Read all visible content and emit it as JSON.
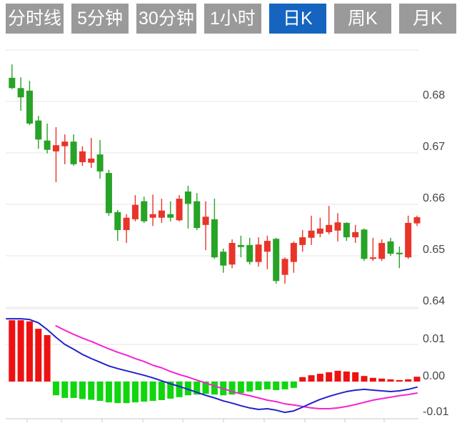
{
  "tabbar": {
    "selected": "日K",
    "tabs": [
      {
        "label": "分时线",
        "active": false
      },
      {
        "label": "5分钟",
        "active": false
      },
      {
        "label": "30分钟",
        "active": false
      },
      {
        "label": "1小时",
        "active": false
      },
      {
        "label": "日K",
        "active": true
      },
      {
        "label": "周K",
        "active": false
      },
      {
        "label": "月K",
        "active": false
      }
    ]
  },
  "colors": {
    "tab_bg": "#9a9a9a",
    "tab_active_bg": "#1565c0",
    "tab_text": "#ffffff",
    "candle_up": "#e93429",
    "candle_down": "#27a327",
    "hist_up": "#ee1111",
    "hist_down": "#0fd60f",
    "dif_line": "#2222cc",
    "dea_line": "#f522d2",
    "grid": "#e5e5e5",
    "axis_line": "#c8c8c8",
    "label_text": "#45454d",
    "background": "#ffffff"
  },
  "chart_data": {
    "type": "candlestick",
    "title": "",
    "legend_position": "none",
    "grid": true,
    "price_axis": {
      "side": "right",
      "tick_labels": [
        "0.68",
        "0.67",
        "0.66",
        "0.65",
        "0.64"
      ],
      "tick_values": [
        0.68,
        0.67,
        0.66,
        0.65,
        0.64
      ],
      "grid_values": [
        0.69,
        0.68,
        0.67,
        0.66,
        0.65,
        0.64
      ],
      "range": [
        0.64,
        0.69
      ]
    },
    "candles": [
      {
        "o": 0.6846,
        "h": 0.6872,
        "l": 0.6824,
        "c": 0.6826
      },
      {
        "o": 0.6826,
        "h": 0.6847,
        "l": 0.6782,
        "c": 0.6808
      },
      {
        "o": 0.6821,
        "h": 0.684,
        "l": 0.6754,
        "c": 0.6757
      },
      {
        "o": 0.6763,
        "h": 0.6772,
        "l": 0.6708,
        "c": 0.6726
      },
      {
        "o": 0.6724,
        "h": 0.6757,
        "l": 0.6699,
        "c": 0.6706
      },
      {
        "o": 0.6703,
        "h": 0.675,
        "l": 0.6643,
        "c": 0.6715
      },
      {
        "o": 0.6713,
        "h": 0.6736,
        "l": 0.6678,
        "c": 0.6722
      },
      {
        "o": 0.6722,
        "h": 0.6736,
        "l": 0.6675,
        "c": 0.6678
      },
      {
        "o": 0.6682,
        "h": 0.6713,
        "l": 0.6675,
        "c": 0.6703
      },
      {
        "o": 0.6681,
        "h": 0.6729,
        "l": 0.6671,
        "c": 0.6689
      },
      {
        "o": 0.6697,
        "h": 0.6725,
        "l": 0.665,
        "c": 0.6664
      },
      {
        "o": 0.6661,
        "h": 0.6667,
        "l": 0.6578,
        "c": 0.6583
      },
      {
        "o": 0.6585,
        "h": 0.6589,
        "l": 0.6529,
        "c": 0.655
      },
      {
        "o": 0.655,
        "h": 0.6581,
        "l": 0.6525,
        "c": 0.6574
      },
      {
        "o": 0.6571,
        "h": 0.6618,
        "l": 0.6567,
        "c": 0.6599
      },
      {
        "o": 0.6606,
        "h": 0.6615,
        "l": 0.6564,
        "c": 0.6567
      },
      {
        "o": 0.6574,
        "h": 0.6619,
        "l": 0.6558,
        "c": 0.6581
      },
      {
        "o": 0.6574,
        "h": 0.6611,
        "l": 0.6564,
        "c": 0.6588
      },
      {
        "o": 0.6581,
        "h": 0.6606,
        "l": 0.6567,
        "c": 0.6574
      },
      {
        "o": 0.6569,
        "h": 0.6618,
        "l": 0.6567,
        "c": 0.6611
      },
      {
        "o": 0.6625,
        "h": 0.6636,
        "l": 0.6553,
        "c": 0.6601
      },
      {
        "o": 0.6606,
        "h": 0.6622,
        "l": 0.655,
        "c": 0.6554
      },
      {
        "o": 0.656,
        "h": 0.6606,
        "l": 0.6511,
        "c": 0.6576
      },
      {
        "o": 0.6571,
        "h": 0.6611,
        "l": 0.6494,
        "c": 0.6497
      },
      {
        "o": 0.6508,
        "h": 0.6514,
        "l": 0.6467,
        "c": 0.6481
      },
      {
        "o": 0.6483,
        "h": 0.6532,
        "l": 0.6476,
        "c": 0.6525
      },
      {
        "o": 0.6521,
        "h": 0.6539,
        "l": 0.6497,
        "c": 0.6517
      },
      {
        "o": 0.6521,
        "h": 0.6535,
        "l": 0.6483,
        "c": 0.6488
      },
      {
        "o": 0.6488,
        "h": 0.6536,
        "l": 0.6479,
        "c": 0.6522
      },
      {
        "o": 0.6508,
        "h": 0.6539,
        "l": 0.6474,
        "c": 0.6529
      },
      {
        "o": 0.6533,
        "h": 0.6535,
        "l": 0.6446,
        "c": 0.6451
      },
      {
        "o": 0.6463,
        "h": 0.6497,
        "l": 0.6446,
        "c": 0.6494
      },
      {
        "o": 0.6488,
        "h": 0.6528,
        "l": 0.6467,
        "c": 0.6525
      },
      {
        "o": 0.6521,
        "h": 0.655,
        "l": 0.6508,
        "c": 0.6536
      },
      {
        "o": 0.6535,
        "h": 0.6578,
        "l": 0.6521,
        "c": 0.6549
      },
      {
        "o": 0.6543,
        "h": 0.6574,
        "l": 0.6536,
        "c": 0.6553
      },
      {
        "o": 0.6546,
        "h": 0.6597,
        "l": 0.6542,
        "c": 0.656
      },
      {
        "o": 0.6549,
        "h": 0.6583,
        "l": 0.6528,
        "c": 0.6565
      },
      {
        "o": 0.6564,
        "h": 0.6565,
        "l": 0.6529,
        "c": 0.6536
      },
      {
        "o": 0.6536,
        "h": 0.656,
        "l": 0.6525,
        "c": 0.6546
      },
      {
        "o": 0.6551,
        "h": 0.6553,
        "l": 0.649,
        "c": 0.6494
      },
      {
        "o": 0.6494,
        "h": 0.6535,
        "l": 0.649,
        "c": 0.6497
      },
      {
        "o": 0.6494,
        "h": 0.6532,
        "l": 0.649,
        "c": 0.6525
      },
      {
        "o": 0.6528,
        "h": 0.6535,
        "l": 0.65,
        "c": 0.6504
      },
      {
        "o": 0.6506,
        "h": 0.6518,
        "l": 0.6476,
        "c": 0.6503
      },
      {
        "o": 0.6497,
        "h": 0.6578,
        "l": 0.6494,
        "c": 0.6564
      },
      {
        "o": 0.6563,
        "h": 0.6578,
        "l": 0.6558,
        "c": 0.6575
      }
    ],
    "macd": {
      "axis_labels": [
        "0.01",
        "0.00",
        "-0.01"
      ],
      "axis_values": [
        0.01,
        0.0,
        -0.01
      ],
      "hist": [
        0.0165,
        0.0165,
        0.0162,
        0.0142,
        0.0125,
        -0.0037,
        -0.0044,
        -0.0044,
        -0.0047,
        -0.0049,
        -0.0052,
        -0.0056,
        -0.0058,
        -0.0058,
        -0.0056,
        -0.0054,
        -0.0052,
        -0.005,
        -0.0046,
        -0.0042,
        -0.0037,
        -0.0035,
        -0.0033,
        -0.0035,
        -0.0037,
        -0.0035,
        -0.0031,
        -0.0027,
        -0.0023,
        -0.0021,
        -0.0023,
        -0.0021,
        -0.0017,
        0.0012,
        0.0017,
        0.0021,
        0.0025,
        0.0029,
        0.0027,
        0.0025,
        0.0015,
        0.001,
        0.0008,
        0.0006,
        0.0004,
        0.0006,
        0.0013
      ],
      "dif": [
        0.0169,
        0.0169,
        0.0167,
        0.0158,
        0.014,
        0.0119,
        0.01,
        0.0087,
        0.0073,
        0.0062,
        0.0052,
        0.0042,
        0.0035,
        0.0029,
        0.0023,
        0.0017,
        0.001,
        0.0002,
        -0.0006,
        -0.0013,
        -0.0021,
        -0.0029,
        -0.0037,
        -0.0044,
        -0.0052,
        -0.0058,
        -0.0065,
        -0.0071,
        -0.0075,
        -0.0073,
        -0.0077,
        -0.0083,
        -0.0079,
        -0.0069,
        -0.0058,
        -0.0048,
        -0.004,
        -0.0033,
        -0.0027,
        -0.0023,
        -0.0021,
        -0.0023,
        -0.0025,
        -0.0027,
        -0.0025,
        -0.0021,
        -0.0015
      ],
      "dea": [
        null,
        null,
        null,
        null,
        null,
        0.015,
        0.0138,
        0.0127,
        0.0117,
        0.0108,
        0.0098,
        0.0088,
        0.0079,
        0.0071,
        0.0062,
        0.0054,
        0.0044,
        0.0037,
        0.0027,
        0.0019,
        0.0012,
        0.0004,
        -0.0004,
        -0.0012,
        -0.0019,
        -0.0027,
        -0.0033,
        -0.0038,
        -0.0044,
        -0.005,
        -0.0054,
        -0.006,
        -0.0063,
        -0.0067,
        -0.0071,
        -0.0073,
        -0.0073,
        -0.0071,
        -0.0067,
        -0.0062,
        -0.0056,
        -0.005,
        -0.0046,
        -0.0042,
        -0.0038,
        -0.0035,
        -0.0031
      ]
    }
  }
}
